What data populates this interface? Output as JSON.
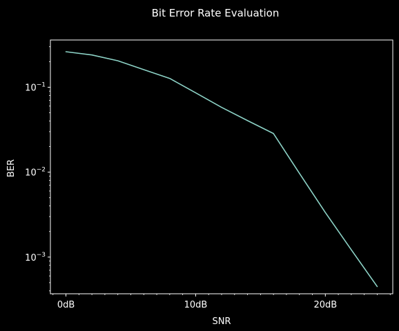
{
  "chart_data": {
    "type": "line",
    "title": "Bit Error Rate Evaluation",
    "xlabel": "SNR",
    "ylabel": "BER",
    "xscale": "linear",
    "yscale": "log",
    "xlim": [
      -1.2,
      25.2
    ],
    "ylim": [
      0.00037,
      0.36
    ],
    "xticks": [
      {
        "value": 0,
        "label": "0dB"
      },
      {
        "value": 10,
        "label": "10dB"
      },
      {
        "value": 20,
        "label": "20dB"
      }
    ],
    "yticks": [
      {
        "value": 0.1,
        "base": "10",
        "exp": "−1"
      },
      {
        "value": 0.01,
        "base": "10",
        "exp": "−2"
      },
      {
        "value": 0.001,
        "base": "10",
        "exp": "−3"
      }
    ],
    "grid": false,
    "legend": "none",
    "series": [
      {
        "color": "#8dd3c7",
        "x": [
          0,
          2,
          4,
          6,
          8,
          10,
          12,
          14,
          16,
          18,
          20,
          22,
          24
        ],
        "y": [
          0.262,
          0.24,
          0.205,
          0.161,
          0.127,
          0.086,
          0.058,
          0.0405,
          0.0285,
          0.0097,
          0.00335,
          0.00122,
          0.00045
        ]
      }
    ]
  },
  "colors": {
    "background": "#000000",
    "foreground": "#ffffff",
    "line": "#8dd3c7"
  }
}
